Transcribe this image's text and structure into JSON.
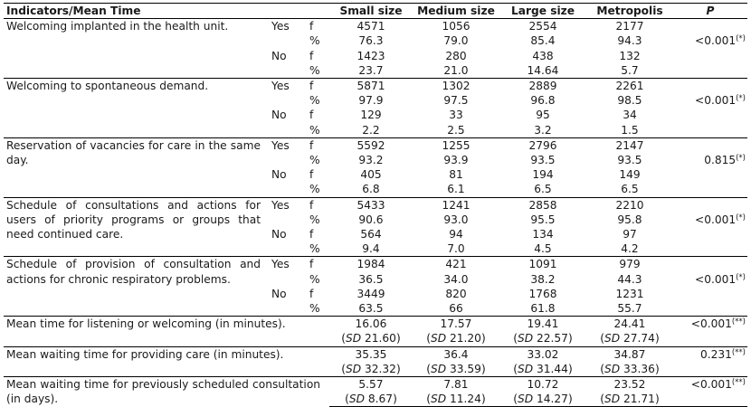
{
  "headers": {
    "indicator": "Indicators/Mean Time",
    "small": "Small size",
    "medium": "Medium size",
    "large": "Large size",
    "metro": "Metropolis",
    "p": "P"
  },
  "sections": [
    {
      "indicator": "Welcoming implanted in the health unit.",
      "p": "<0.001",
      "p_note": "(*)",
      "rows": [
        {
          "answer": "Yes",
          "stat": "f",
          "small": "4571",
          "medium": "1056",
          "large": "2554",
          "metro": "2177"
        },
        {
          "answer": "",
          "stat": "%",
          "small": "76.3",
          "medium": "79.0",
          "large": "85.4",
          "metro": "94.3"
        },
        {
          "answer": "No",
          "stat": "f",
          "small": "1423",
          "medium": "280",
          "large": "438",
          "metro": "132"
        },
        {
          "answer": "",
          "stat": "%",
          "small": "23.7",
          "medium": "21.0",
          "large": "14.64",
          "metro": "5.7"
        }
      ]
    },
    {
      "indicator": "Welcoming to spontaneous demand.",
      "p": "<0.001",
      "p_note": "(*)",
      "rows": [
        {
          "answer": "Yes",
          "stat": "f",
          "small": "5871",
          "medium": "1302",
          "large": "2889",
          "metro": "2261"
        },
        {
          "answer": "",
          "stat": "%",
          "small": "97.9",
          "medium": "97.5",
          "large": "96.8",
          "metro": "98.5"
        },
        {
          "answer": "No",
          "stat": "f",
          "small": "129",
          "medium": "33",
          "large": "95",
          "metro": "34"
        },
        {
          "answer": "",
          "stat": "%",
          "small": "2.2",
          "medium": "2.5",
          "large": "3.2",
          "metro": "1.5"
        }
      ]
    },
    {
      "indicator": "Reservation of vacancies for care in the same day.",
      "p": "0.815",
      "p_note": "(*)",
      "rows": [
        {
          "answer": "Yes",
          "stat": "f",
          "small": "5592",
          "medium": "1255",
          "large": "2796",
          "metro": "2147"
        },
        {
          "answer": "",
          "stat": "%",
          "small": "93.2",
          "medium": "93.9",
          "large": "93.5",
          "metro": "93.5"
        },
        {
          "answer": "No",
          "stat": "f",
          "small": "405",
          "medium": "81",
          "large": "194",
          "metro": "149"
        },
        {
          "answer": "",
          "stat": "%",
          "small": "6.8",
          "medium": "6.1",
          "large": "6.5",
          "metro": "6.5"
        }
      ]
    },
    {
      "indicator": "Schedule of consultations and actions for users of priority programs or groups that need continued care.",
      "p": "<0.001",
      "p_note": "(*)",
      "rows": [
        {
          "answer": "Yes",
          "stat": "f",
          "small": "5433",
          "medium": "1241",
          "large": "2858",
          "metro": "2210"
        },
        {
          "answer": "",
          "stat": "%",
          "small": "90.6",
          "medium": "93.0",
          "large": "95.5",
          "metro": "95.8"
        },
        {
          "answer": "No",
          "stat": "f",
          "small": "564",
          "medium": "94",
          "large": "134",
          "metro": "97"
        },
        {
          "answer": "",
          "stat": "%",
          "small": "9.4",
          "medium": "7.0",
          "large": "4.5",
          "metro": "4.2"
        }
      ]
    },
    {
      "indicator": "Schedule of provision of consultation and actions for chronic respiratory problems.",
      "p": "<0.001",
      "p_note": "(*)",
      "rows": [
        {
          "answer": "Yes",
          "stat": "f",
          "small": "1984",
          "medium": "421",
          "large": "1091",
          "metro": "979"
        },
        {
          "answer": "",
          "stat": "%",
          "small": "36.5",
          "medium": "34.0",
          "large": "38.2",
          "metro": "44.3"
        },
        {
          "answer": "No",
          "stat": "f",
          "small": "3449",
          "medium": "820",
          "large": "1768",
          "metro": "1231"
        },
        {
          "answer": "",
          "stat": "%",
          "small": "63.5",
          "medium": "66",
          "large": "61.8",
          "metro": "55.7"
        }
      ]
    }
  ],
  "means": [
    {
      "indicator": "Mean time for listening or welcoming (in minutes).",
      "p": "<0.001",
      "p_note": "(**)",
      "small": "16.06",
      "medium": "17.57",
      "large": "19.41",
      "metro": "24.41",
      "sd_small": "21.60",
      "sd_medium": "21.20",
      "sd_large": "22.57",
      "sd_metro": "27.74"
    },
    {
      "indicator": "Mean waiting time for providing care (in minutes).",
      "p": "0.231",
      "p_note": "(**)",
      "small": "35.35",
      "medium": "36.4",
      "large": "33.02",
      "metro": "34.87",
      "sd_small": "32.32",
      "sd_medium": "33.59",
      "sd_large": "31.44",
      "sd_metro": "33.36"
    },
    {
      "indicator": "Mean waiting time for previously scheduled consultation (in days).",
      "p": "<0.001",
      "p_note": "(**)",
      "small": "5.57",
      "medium": "7.81",
      "large": "10.72",
      "metro": "23.52",
      "sd_small": "8.67",
      "sd_medium": "11.24",
      "sd_large": "14.27",
      "sd_metro": "21.71"
    }
  ],
  "sd_label": "SD"
}
